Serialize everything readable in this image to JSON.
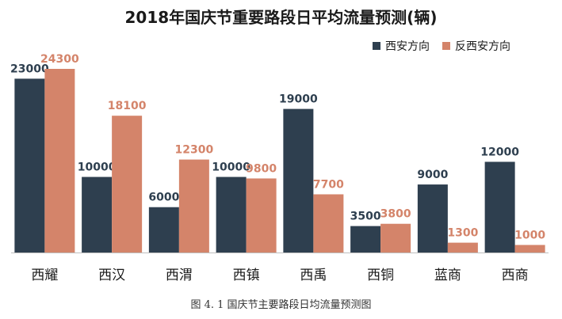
{
  "chart_data": {
    "type": "bar",
    "title": "2018年国庆节重要路段日平均流量预测(辆)",
    "categories": [
      "西耀",
      "西汉",
      "西渭",
      "西镇",
      "西禹",
      "西铜",
      "蓝商",
      "西商"
    ],
    "series": [
      {
        "name": "西安方向",
        "color": "#2e3f4f",
        "values": [
          23000,
          10000,
          6000,
          10000,
          19000,
          3500,
          9000,
          12000
        ]
      },
      {
        "name": "反西安方向",
        "color": "#d4846a",
        "values": [
          24300,
          18100,
          12300,
          9800,
          7700,
          3800,
          1300,
          1000
        ]
      }
    ],
    "value_label_colors": {
      "西安方向": "#2e3f4f",
      "反西安方向": "#d4846a"
    },
    "ylim": [
      0,
      24300
    ],
    "grid": false,
    "legend_position": "top-right"
  },
  "caption": "图 4. 1 国庆节主要路段日均流量预测图"
}
